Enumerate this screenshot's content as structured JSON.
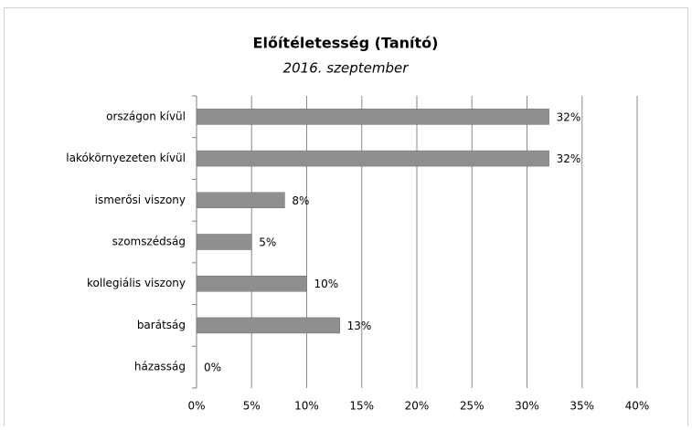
{
  "chart_data": {
    "type": "bar",
    "orientation": "horizontal",
    "title": "Előítéletesség (Tanító)",
    "subtitle": "2016. szeptember",
    "categories": [
      "országon kívül",
      "lakókörnyezeten kívül",
      "ismerősi viszony",
      "szomszédság",
      "kollegiális viszony",
      "barátság",
      "házasság"
    ],
    "values": [
      32,
      32,
      8,
      5,
      10,
      13,
      0
    ],
    "value_labels": [
      "32%",
      "32%",
      "8%",
      "5%",
      "10%",
      "13%",
      "0%"
    ],
    "color": "#8f8f8f",
    "xlim": [
      0,
      40
    ],
    "xticks": [
      {
        "value": 0,
        "label": "0%"
      },
      {
        "value": 5,
        "label": "5%"
      },
      {
        "value": 10,
        "label": "10%"
      },
      {
        "value": 15,
        "label": "15%"
      },
      {
        "value": 20,
        "label": "20%"
      },
      {
        "value": 25,
        "label": "25%"
      },
      {
        "value": 30,
        "label": "30%"
      },
      {
        "value": 35,
        "label": "35%"
      },
      {
        "value": 40,
        "label": "40%"
      }
    ],
    "grid": true
  }
}
